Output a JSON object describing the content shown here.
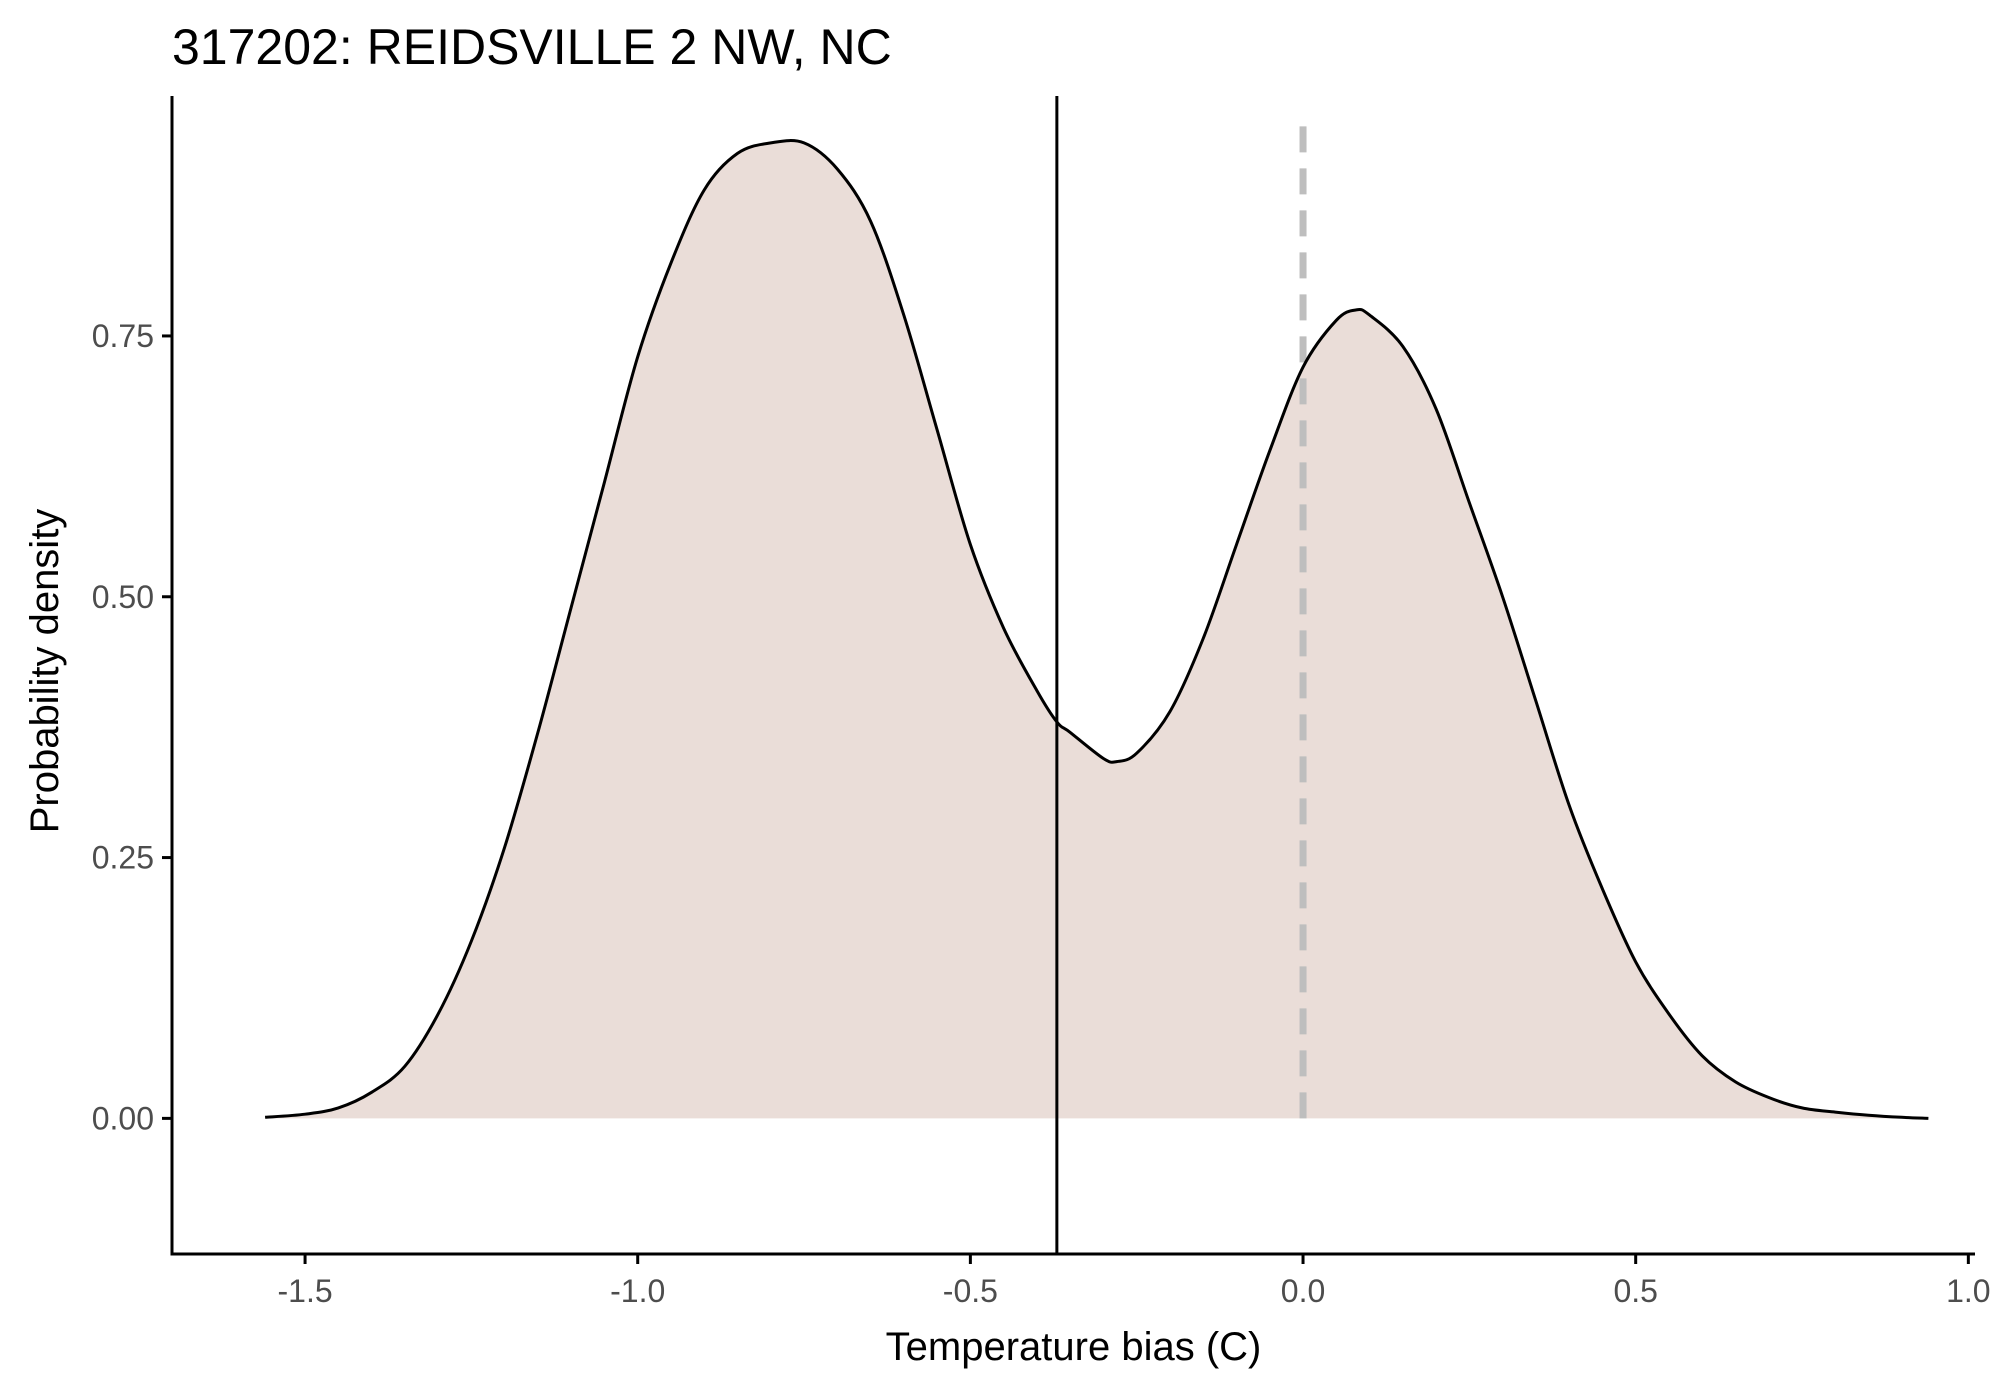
{
  "chart_data": {
    "type": "area",
    "title": "317202: REIDSVILLE 2 NW, NC",
    "xlabel": "Temperature bias (C)",
    "ylabel": "Probability density",
    "xlim": [
      -1.7,
      1.01
    ],
    "ylim": [
      -0.13,
      0.98
    ],
    "x_ticks": [
      -1.5,
      -1.0,
      -0.5,
      0.0,
      0.5,
      1.0
    ],
    "x_tick_labels": [
      "-1.5",
      "-1.0",
      "-0.5",
      "0.0",
      "0.5",
      "1.0"
    ],
    "y_ticks": [
      0.0,
      0.25,
      0.5,
      0.75
    ],
    "y_tick_labels": [
      "0.00",
      "0.25",
      "0.50",
      "0.75"
    ],
    "grid": false,
    "legend": "none",
    "fill_color": "#eaddd8",
    "line_color": "#000000",
    "reference_lines": [
      {
        "x": -0.37,
        "style": "solid",
        "color": "#000000"
      },
      {
        "x": 0.0,
        "style": "dashed",
        "color": "#bebebe"
      }
    ],
    "series": [
      {
        "x": [
          -1.56,
          -1.5,
          -1.45,
          -1.4,
          -1.35,
          -1.3,
          -1.25,
          -1.2,
          -1.15,
          -1.1,
          -1.05,
          -1.0,
          -0.95,
          -0.9,
          -0.85,
          -0.8,
          -0.75,
          -0.7,
          -0.65,
          -0.6,
          -0.55,
          -0.5,
          -0.45,
          -0.4,
          -0.37,
          -0.35,
          -0.3,
          -0.28,
          -0.25,
          -0.2,
          -0.15,
          -0.1,
          -0.05,
          0.0,
          0.05,
          0.08,
          0.1,
          0.15,
          0.2,
          0.25,
          0.3,
          0.35,
          0.4,
          0.45,
          0.5,
          0.55,
          0.6,
          0.65,
          0.7,
          0.75,
          0.8,
          0.85,
          0.9,
          0.94
        ],
        "y": [
          0.001,
          0.004,
          0.01,
          0.025,
          0.05,
          0.1,
          0.17,
          0.26,
          0.37,
          0.49,
          0.61,
          0.73,
          0.82,
          0.89,
          0.925,
          0.935,
          0.935,
          0.91,
          0.86,
          0.77,
          0.66,
          0.55,
          0.47,
          0.41,
          0.38,
          0.37,
          0.345,
          0.342,
          0.35,
          0.39,
          0.46,
          0.55,
          0.64,
          0.72,
          0.765,
          0.775,
          0.77,
          0.74,
          0.68,
          0.59,
          0.5,
          0.4,
          0.3,
          0.22,
          0.15,
          0.1,
          0.06,
          0.035,
          0.02,
          0.01,
          0.006,
          0.003,
          0.001,
          0.0
        ]
      }
    ]
  }
}
